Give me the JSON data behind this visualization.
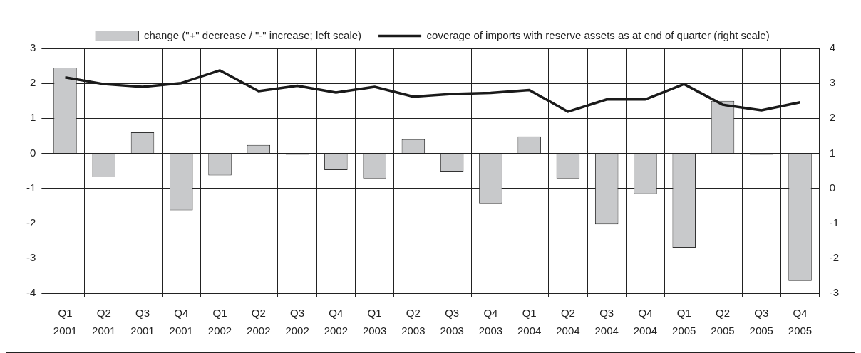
{
  "chart_data": {
    "type": "bar",
    "categories": [
      "Q1 2001",
      "Q2 2001",
      "Q3 2001",
      "Q4 2001",
      "Q1 2002",
      "Q2 2002",
      "Q3 2002",
      "Q4 2002",
      "Q1 2003",
      "Q2 2003",
      "Q3 2003",
      "Q4 2003",
      "Q1 2004",
      "Q2 2004",
      "Q3 2004",
      "Q4 2004",
      "Q1 2005",
      "Q2 2005",
      "Q3 2005",
      "Q4 2005"
    ],
    "series": [
      {
        "name": "change (\"+\" decrease / \"-\" increase; left scale)",
        "color": "#c8c9cb",
        "values": [
          2.45,
          -0.68,
          0.6,
          -1.63,
          -0.63,
          0.24,
          -0.04,
          -0.48,
          -0.72,
          0.4,
          -0.52,
          -1.43,
          0.48,
          -0.72,
          -2.03,
          -1.16,
          -2.7,
          1.5,
          -0.04,
          -3.65
        ]
      },
      {
        "name": "coverage of imports with reserve assets as at end of quarter (right scale)",
        "type": "line",
        "axis": "y2",
        "color": "#1a1a1a",
        "values": [
          3.17,
          2.98,
          2.9,
          3.01,
          3.37,
          2.78,
          2.93,
          2.74,
          2.9,
          2.62,
          2.7,
          2.73,
          2.81,
          2.19,
          2.54,
          2.54,
          2.98,
          2.39,
          2.23,
          2.46
        ]
      }
    ],
    "ylim": [
      -4,
      3
    ],
    "yticks": [
      -4,
      -3,
      -2,
      -1,
      0,
      1,
      2,
      3
    ],
    "y2lim": [
      -3,
      4
    ],
    "y2ticks": [
      -3,
      -2,
      -1,
      0,
      1,
      2,
      3,
      4
    ],
    "grid": true,
    "legend": "top",
    "marker": "none",
    "line_style": "solid"
  }
}
